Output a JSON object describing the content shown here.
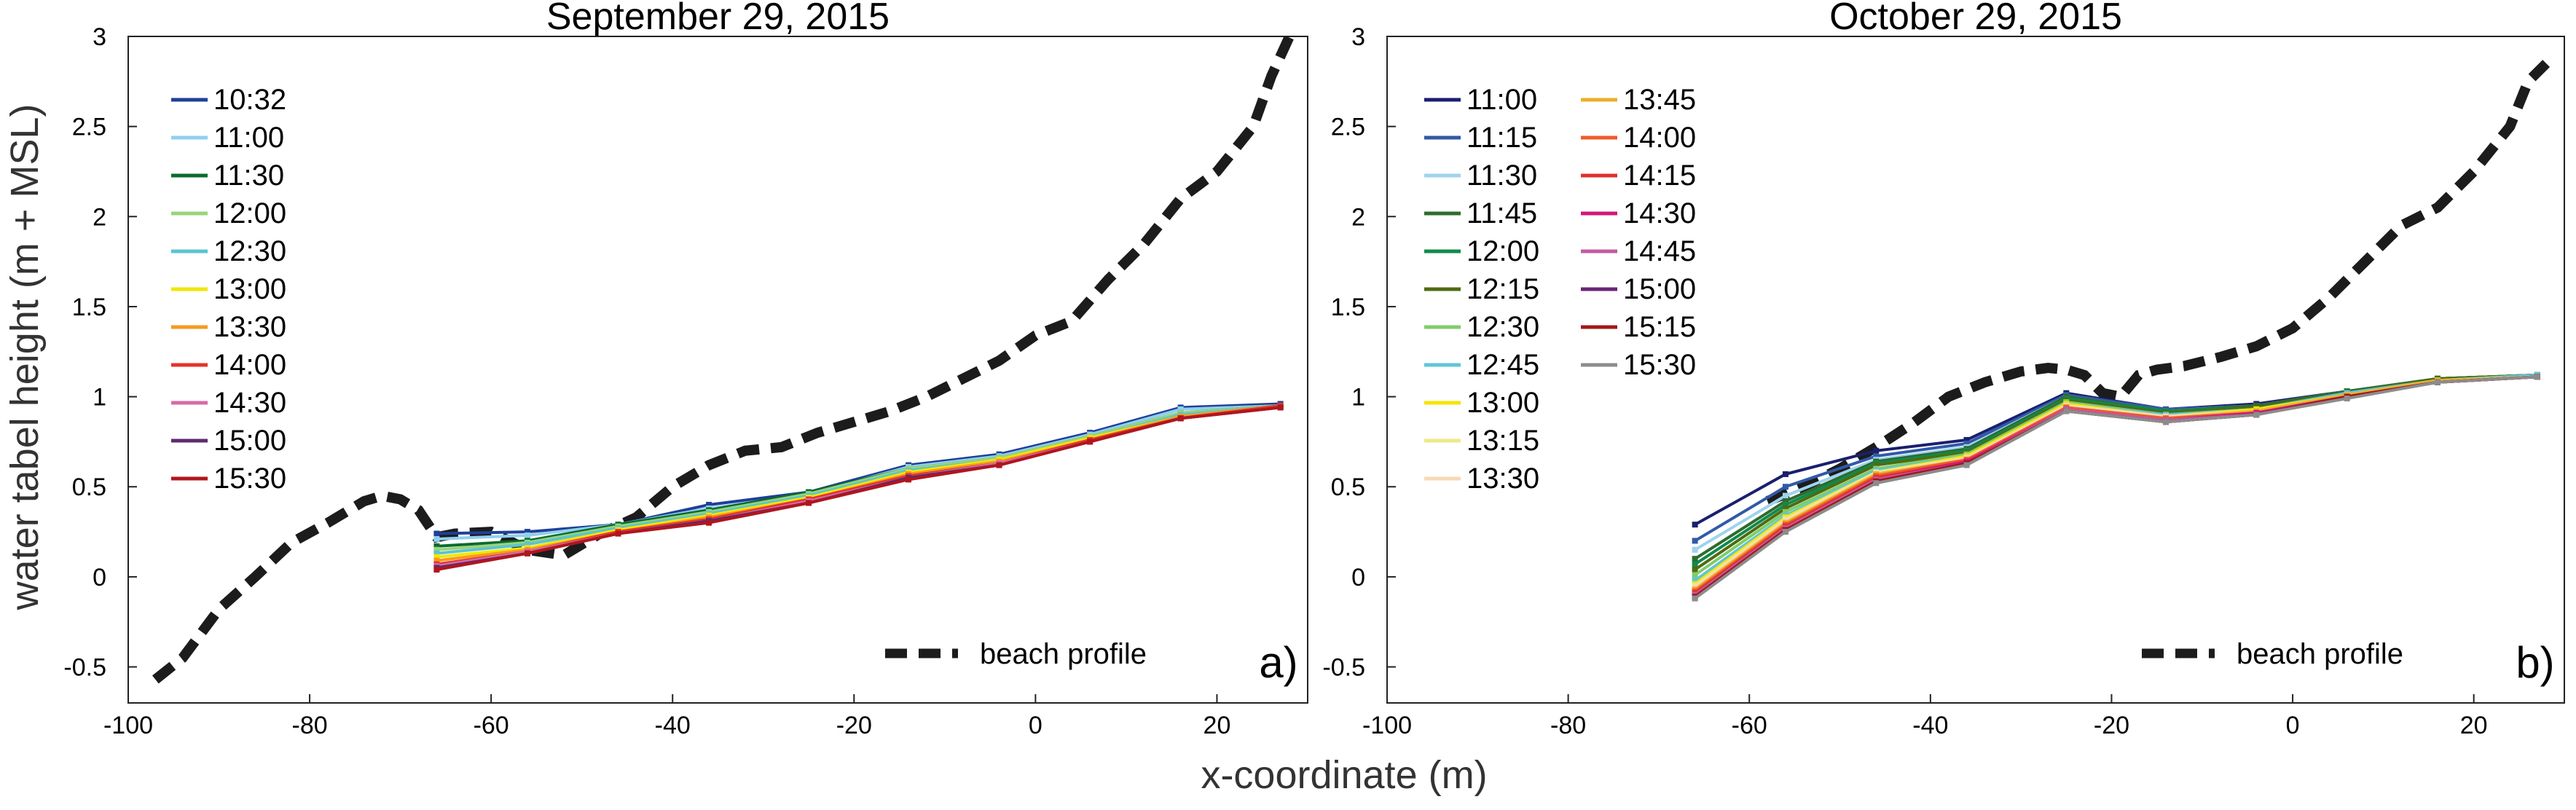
{
  "chart_data": {
    "ylabel": "water tabel height (m + MSL)",
    "xlabel": "x-coordinate (m)",
    "panels": [
      {
        "type": "line",
        "title": "September 29, 2015",
        "panel_label": "a)",
        "xlim": [
          -100,
          30
        ],
        "ylim": [
          -0.7,
          3
        ],
        "xticks": [
          "-100",
          "-80",
          "-60",
          "-40",
          "-20",
          "0",
          "20"
        ],
        "yticks": [
          "-0.5",
          "0",
          "0.5",
          "1",
          "1.5",
          "2",
          "2.5",
          "3"
        ],
        "x": [
          -66,
          -56,
          -46,
          -36,
          -25,
          -14,
          -4,
          6,
          16,
          27
        ],
        "series": [
          {
            "name": "10:32",
            "color": "#1f3f99",
            "values": [
              0.24,
              0.25,
              0.29,
              0.4,
              0.47,
              0.62,
              0.68,
              0.8,
              0.94,
              0.96
            ]
          },
          {
            "name": "11:00",
            "color": "#8fd0ee",
            "values": [
              0.21,
              0.23,
              0.29,
              0.38,
              0.46,
              0.61,
              0.67,
              0.79,
              0.93,
              0.95
            ]
          },
          {
            "name": "11:30",
            "color": "#0a6b2e",
            "values": [
              0.17,
              0.2,
              0.29,
              0.37,
              0.47,
              0.6,
              0.66,
              0.78,
              0.91,
              0.95
            ]
          },
          {
            "name": "12:00",
            "color": "#99d47a",
            "values": [
              0.15,
              0.19,
              0.28,
              0.36,
              0.46,
              0.6,
              0.66,
              0.78,
              0.91,
              0.95
            ]
          },
          {
            "name": "12:30",
            "color": "#5bc4cf",
            "values": [
              0.13,
              0.18,
              0.27,
              0.35,
              0.45,
              0.59,
              0.65,
              0.77,
              0.9,
              0.95
            ]
          },
          {
            "name": "13:00",
            "color": "#f2e600",
            "values": [
              0.11,
              0.16,
              0.26,
              0.34,
              0.44,
              0.58,
              0.65,
              0.77,
              0.89,
              0.95
            ]
          },
          {
            "name": "13:30",
            "color": "#f59a1e",
            "values": [
              0.09,
              0.15,
              0.25,
              0.33,
              0.43,
              0.57,
              0.64,
              0.76,
              0.89,
              0.95
            ]
          },
          {
            "name": "14:00",
            "color": "#e8322b",
            "values": [
              0.07,
              0.14,
              0.25,
              0.32,
              0.43,
              0.56,
              0.63,
              0.76,
              0.88,
              0.95
            ]
          },
          {
            "name": "14:30",
            "color": "#d66aa8",
            "values": [
              0.06,
              0.14,
              0.24,
              0.31,
              0.42,
              0.55,
              0.63,
              0.75,
              0.88,
              0.94
            ]
          },
          {
            "name": "15:00",
            "color": "#5e2a6e",
            "values": [
              0.05,
              0.13,
              0.24,
              0.31,
              0.41,
              0.55,
              0.62,
              0.75,
              0.88,
              0.94
            ]
          },
          {
            "name": "15:30",
            "color": "#b0161c",
            "values": [
              0.04,
              0.13,
              0.24,
              0.3,
              0.41,
              0.54,
              0.62,
              0.75,
              0.88,
              0.94
            ]
          }
        ],
        "beach_profile": {
          "name": "beach profile",
          "x": [
            -97,
            -94,
            -90,
            -86,
            -82,
            -78,
            -74,
            -72,
            -70,
            -68,
            -66,
            -64,
            -60,
            -58,
            -56,
            -52,
            -48,
            -44,
            -40,
            -36,
            -32,
            -28,
            -24,
            -20,
            -16,
            -12,
            -8,
            -4,
            0,
            4,
            8,
            12,
            16,
            20,
            24,
            26,
            28
          ],
          "y": [
            -0.57,
            -0.45,
            -0.18,
            0.0,
            0.19,
            0.3,
            0.42,
            0.45,
            0.43,
            0.37,
            0.22,
            0.24,
            0.25,
            0.2,
            0.15,
            0.12,
            0.24,
            0.33,
            0.5,
            0.62,
            0.7,
            0.72,
            0.8,
            0.86,
            0.92,
            1.0,
            1.1,
            1.2,
            1.34,
            1.42,
            1.65,
            1.85,
            2.1,
            2.25,
            2.5,
            2.78,
            3.0
          ]
        }
      },
      {
        "type": "line",
        "title": "October 29, 2015",
        "panel_label": "b)",
        "xlim": [
          -100,
          30
        ],
        "ylim": [
          -0.7,
          3
        ],
        "xticks": [
          "-100",
          "-80",
          "-60",
          "-40",
          "-20",
          "0",
          "20"
        ],
        "yticks": [
          "-0.5",
          "0",
          "0.5",
          "1",
          "1.5",
          "2",
          "2.5",
          "3"
        ],
        "x": [
          -66,
          -56,
          -46,
          -36,
          -25,
          -14,
          -4,
          6,
          16,
          27
        ],
        "series": [
          {
            "name": "11:00",
            "color": "#1a1f6e",
            "values": [
              0.29,
              0.57,
              0.7,
              0.76,
              1.02,
              0.93,
              0.96,
              1.03,
              1.1,
              1.12
            ]
          },
          {
            "name": "11:15",
            "color": "#3159a8",
            "values": [
              0.2,
              0.5,
              0.67,
              0.74,
              1.01,
              0.93,
              0.95,
              1.03,
              1.1,
              1.12
            ]
          },
          {
            "name": "11:30",
            "color": "#9fd3ee",
            "values": [
              0.15,
              0.45,
              0.65,
              0.72,
              1.0,
              0.92,
              0.95,
              1.03,
              1.1,
              1.12
            ]
          },
          {
            "name": "11:45",
            "color": "#2e6b2e",
            "values": [
              0.1,
              0.42,
              0.64,
              0.71,
              1.0,
              0.92,
              0.95,
              1.03,
              1.1,
              1.12
            ]
          },
          {
            "name": "12:00",
            "color": "#0f8a4c",
            "values": [
              0.07,
              0.4,
              0.63,
              0.7,
              0.99,
              0.92,
              0.94,
              1.02,
              1.1,
              1.12
            ]
          },
          {
            "name": "12:15",
            "color": "#4f6b12",
            "values": [
              0.04,
              0.38,
              0.62,
              0.69,
              0.98,
              0.91,
              0.94,
              1.02,
              1.1,
              1.12
            ]
          },
          {
            "name": "12:30",
            "color": "#7fcc6a",
            "values": [
              0.01,
              0.36,
              0.6,
              0.68,
              0.97,
              0.9,
              0.93,
              1.02,
              1.09,
              1.12
            ]
          },
          {
            "name": "12:45",
            "color": "#5ec5d8",
            "values": [
              -0.02,
              0.34,
              0.59,
              0.67,
              0.96,
              0.9,
              0.93,
              1.02,
              1.09,
              1.12
            ]
          },
          {
            "name": "13:00",
            "color": "#f5e400",
            "values": [
              -0.04,
              0.33,
              0.58,
              0.67,
              0.96,
              0.89,
              0.93,
              1.01,
              1.09,
              1.11
            ]
          },
          {
            "name": "13:15",
            "color": "#efe88a",
            "values": [
              -0.05,
              0.32,
              0.58,
              0.66,
              0.95,
              0.89,
              0.92,
              1.01,
              1.09,
              1.11
            ]
          },
          {
            "name": "13:30",
            "color": "#f7d9b5",
            "values": [
              -0.06,
              0.31,
              0.57,
              0.66,
              0.95,
              0.89,
              0.92,
              1.01,
              1.09,
              1.11
            ]
          },
          {
            "name": "13:45",
            "color": "#eab02a",
            "values": [
              -0.07,
              0.3,
              0.57,
              0.65,
              0.94,
              0.88,
              0.92,
              1.01,
              1.09,
              1.11
            ]
          },
          {
            "name": "14:00",
            "color": "#f05a2a",
            "values": [
              -0.08,
              0.29,
              0.56,
              0.65,
              0.94,
              0.88,
              0.91,
              1.0,
              1.08,
              1.11
            ]
          },
          {
            "name": "14:15",
            "color": "#e0302b",
            "values": [
              -0.09,
              0.28,
              0.55,
              0.64,
              0.93,
              0.87,
              0.91,
              1.0,
              1.08,
              1.11
            ]
          },
          {
            "name": "14:30",
            "color": "#d4157c",
            "values": [
              -0.1,
              0.27,
              0.54,
              0.64,
              0.93,
              0.87,
              0.91,
              1.0,
              1.08,
              1.11
            ]
          },
          {
            "name": "14:45",
            "color": "#c45a9e",
            "values": [
              -0.1,
              0.27,
              0.54,
              0.63,
              0.93,
              0.87,
              0.9,
              1.0,
              1.08,
              1.11
            ]
          },
          {
            "name": "15:00",
            "color": "#6a2575",
            "values": [
              -0.11,
              0.26,
              0.53,
              0.63,
              0.92,
              0.86,
              0.9,
              1.0,
              1.08,
              1.11
            ]
          },
          {
            "name": "15:15",
            "color": "#a3161b",
            "values": [
              -0.11,
              0.26,
              0.53,
              0.63,
              0.92,
              0.86,
              0.9,
              1.0,
              1.08,
              1.11
            ]
          },
          {
            "name": "15:30",
            "color": "#8c8c8c",
            "values": [
              -0.12,
              0.25,
              0.52,
              0.62,
              0.92,
              0.86,
              0.9,
              0.99,
              1.08,
              1.11
            ]
          }
        ],
        "beach_profile": {
          "name": "beach profile",
          "x": [
            -58,
            -54,
            -50,
            -46,
            -42,
            -38,
            -34,
            -30,
            -27,
            -25,
            -23,
            -21,
            -19,
            -17,
            -15,
            -12,
            -8,
            -4,
            0,
            4,
            8,
            12,
            16,
            20,
            24,
            26,
            28
          ],
          "y": [
            0.42,
            0.5,
            0.6,
            0.72,
            0.85,
            1.0,
            1.08,
            1.14,
            1.16,
            1.15,
            1.12,
            1.02,
            1.0,
            1.12,
            1.15,
            1.17,
            1.22,
            1.28,
            1.38,
            1.55,
            1.75,
            1.95,
            2.05,
            2.25,
            2.5,
            2.75,
            2.85
          ]
        }
      }
    ]
  }
}
